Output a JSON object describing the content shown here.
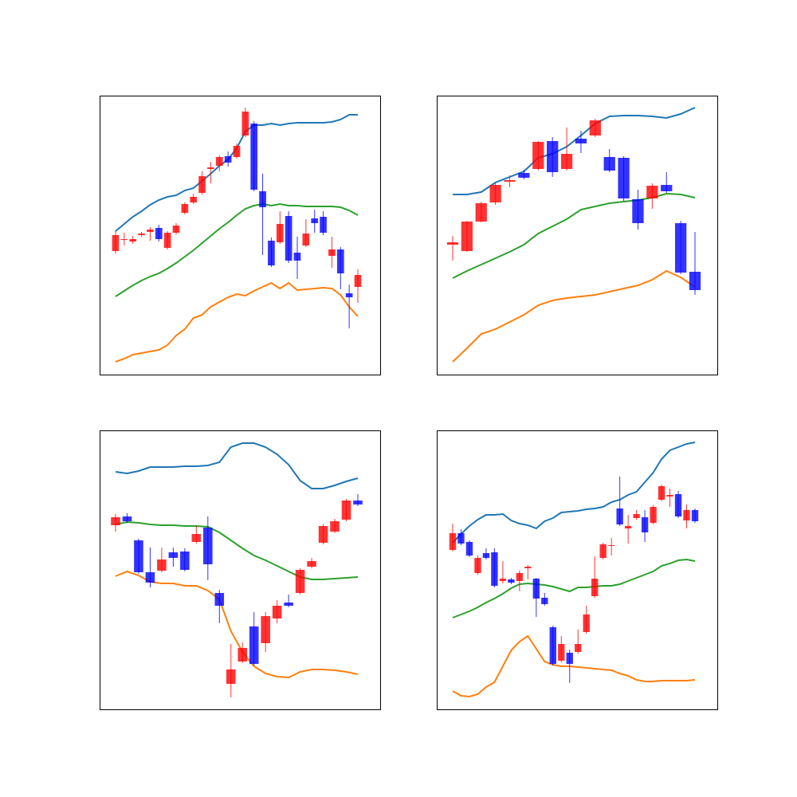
{
  "chart_data": [
    {
      "type": "candlestick",
      "ylim": [
        0,
        350
      ],
      "up_color": "#ff0000",
      "down_color": "#0000ff",
      "open": [
        155,
        169,
        167,
        175,
        179,
        184,
        159,
        178,
        203,
        216,
        228,
        258,
        262,
        274,
        273,
        300,
        315,
        230,
        168,
        166,
        199,
        153,
        162,
        196,
        198,
        149,
        157,
        102,
        110
      ],
      "high": [
        180,
        178,
        174,
        179,
        185,
        188,
        180,
        190,
        216,
        227,
        255,
        267,
        275,
        280,
        290,
        335,
        318,
        252,
        172,
        205,
        205,
        173,
        195,
        207,
        205,
        173,
        160,
        113,
        132
      ],
      "low": [
        152,
        162,
        164,
        173,
        168,
        167,
        157,
        176,
        201,
        214,
        226,
        240,
        255,
        261,
        271,
        298,
        230,
        150,
        135,
        164,
        140,
        120,
        160,
        178,
        175,
        134,
        107,
        58,
        90
      ],
      "close": [
        175,
        170,
        170,
        177,
        182,
        170,
        178,
        187,
        214,
        223,
        249,
        260,
        273,
        266,
        287,
        330,
        232,
        210,
        137,
        189,
        143,
        143,
        177,
        190,
        178,
        157,
        127,
        97,
        125
      ],
      "lines": [
        {
          "color": "#1f77b4",
          "values": [
            180,
            189,
            198,
            205,
            213,
            219,
            223,
            225,
            231,
            234,
            243,
            252,
            262,
            270,
            284,
            305,
            313,
            313,
            315,
            313,
            315,
            316,
            316,
            316,
            316,
            317,
            320,
            326,
            326
          ]
        },
        {
          "color": "#2ca02c",
          "values": [
            98,
            105,
            112,
            118,
            123,
            127,
            133,
            140,
            148,
            156,
            165,
            174,
            183,
            191,
            200,
            208,
            212,
            214,
            212,
            214,
            212,
            212,
            211,
            211,
            211,
            211,
            210,
            206,
            200
          ]
        },
        {
          "color": "#ff7f0e",
          "values": [
            16,
            20,
            25,
            27,
            29,
            31,
            37,
            49,
            57,
            71,
            75,
            85,
            91,
            97,
            101,
            99,
            105,
            110,
            115,
            108,
            115,
            106,
            107,
            108,
            109,
            108,
            100,
            85,
            73
          ]
        }
      ]
    },
    {
      "type": "candlestick",
      "ylim": [
        0,
        350
      ],
      "up_color": "#ff0000",
      "down_color": "#0000ff",
      "open": [
        163,
        155,
        192,
        216,
        242,
        253,
        258,
        293,
        258,
        296,
        300,
        273,
        272,
        220,
        221,
        238,
        190,
        129
      ],
      "high": [
        174,
        193,
        217,
        241,
        250,
        257,
        293,
        298,
        310,
        306,
        321,
        283,
        274,
        232,
        240,
        254,
        193,
        179
      ],
      "low": [
        143,
        154,
        191,
        213,
        235,
        245,
        256,
        248,
        256,
        278,
        298,
        254,
        218,
        182,
        208,
        228,
        126,
        100
      ],
      "close": [
        166,
        192,
        215,
        238,
        244,
        247,
        292,
        254,
        277,
        290,
        319,
        256,
        221,
        190,
        237,
        230,
        128,
        106
      ],
      "lines": [
        {
          "color": "#1f77b4",
          "values": [
            226,
            226,
            229,
            241,
            248,
            255,
            272,
            277,
            286,
            300,
            315,
            324,
            325,
            325,
            324,
            322,
            327,
            335
          ]
        },
        {
          "color": "#2ca02c",
          "values": [
            121,
            130,
            138,
            146,
            154,
            163,
            177,
            186,
            195,
            207,
            211,
            215,
            217,
            219,
            222,
            227,
            226,
            222
          ]
        },
        {
          "color": "#ff7f0e",
          "values": [
            16,
            33,
            51,
            57,
            66,
            75,
            87,
            93,
            96,
            98,
            100,
            104,
            108,
            112,
            119,
            130,
            122,
            110
          ]
        }
      ]
    },
    {
      "type": "candlestick",
      "ylim": [
        0,
        350
      ],
      "up_color": "#ff0000",
      "down_color": "#0000ff",
      "open": [
        231,
        242,
        212,
        172,
        174,
        197,
        198,
        210,
        228,
        146,
        32,
        60,
        104,
        83,
        114,
        134,
        146,
        179,
        209,
        223,
        238,
        262
      ],
      "high": [
        245,
        246,
        214,
        203,
        203,
        203,
        202,
        230,
        242,
        150,
        82,
        84,
        122,
        122,
        137,
        144,
        177,
        190,
        232,
        239,
        264,
        270
      ],
      "low": [
        223,
        234,
        170,
        153,
        172,
        179,
        173,
        208,
        162,
        108,
        15,
        58,
        55,
        72,
        108,
        128,
        144,
        177,
        207,
        221,
        236,
        255
      ],
      "close": [
        241,
        236,
        172,
        159,
        188,
        190,
        175,
        220,
        182,
        130,
        50,
        77,
        57,
        117,
        130,
        130,
        175,
        186,
        230,
        236,
        262,
        257
      ],
      "lines": [
        {
          "color": "#1f77b4",
          "values": [
            298,
            296,
            299,
            304,
            304,
            304,
            305,
            305,
            306,
            310,
            329,
            334,
            334,
            329,
            320,
            307,
            287,
            277,
            277,
            281,
            286,
            290
          ]
        },
        {
          "color": "#2ca02c",
          "values": [
            232,
            235,
            234,
            232,
            231,
            231,
            230,
            230,
            229,
            222,
            212,
            202,
            193,
            187,
            180,
            173,
            166,
            163,
            163,
            164,
            165,
            166
          ]
        },
        {
          "color": "#ff7f0e",
          "values": [
            167,
            173,
            168,
            160,
            158,
            158,
            155,
            155,
            149,
            138,
            98,
            72,
            54,
            45,
            41,
            40,
            47,
            50,
            50,
            49,
            47,
            44
          ]
        }
      ]
    },
    {
      "type": "candlestick",
      "ylim": [
        0,
        350
      ],
      "up_color": "#ff0000",
      "down_color": "#0000ff",
      "open": [
        200,
        221,
        210,
        171,
        196,
        197,
        161,
        163,
        161,
        177,
        164,
        140,
        103,
        61,
        71,
        72,
        97,
        142,
        190,
        205,
        252,
        227,
        240,
        241,
        234,
        263,
        267,
        270,
        237,
        250
      ],
      "high": [
        233,
        226,
        212,
        193,
        202,
        202,
        186,
        165,
        174,
        181,
        165,
        146,
        105,
        92,
        75,
        100,
        130,
        192,
        209,
        215,
        292,
        244,
        250,
        250,
        256,
        282,
        277,
        274,
        257,
        252
      ],
      "low": [
        198,
        206,
        191,
        169,
        188,
        153,
        158,
        157,
        148,
        163,
        116,
        130,
        55,
        59,
        33,
        70,
        95,
        140,
        188,
        193,
        230,
        208,
        238,
        210,
        232,
        261,
        254,
        240,
        227,
        234
      ],
      "close": [
        221,
        208,
        193,
        190,
        190,
        155,
        164,
        159,
        171,
        179,
        139,
        132,
        57,
        82,
        57,
        82,
        119,
        164,
        207,
        206,
        232,
        230,
        245,
        222,
        254,
        280,
        269,
        242,
        250,
        236
      ],
      "lines": [
        {
          "color": "#1f77b4",
          "values": [
            209,
            220,
            230,
            238,
            244,
            244,
            245,
            237,
            233,
            231,
            227,
            236,
            240,
            247,
            248,
            249,
            251,
            252,
            254,
            260,
            263,
            269,
            273,
            285,
            297,
            314,
            325,
            329,
            333,
            335
          ]
        },
        {
          "color": "#2ca02c",
          "values": [
            115,
            119,
            123,
            128,
            134,
            139,
            145,
            152,
            157,
            158,
            157,
            156,
            154,
            151,
            148,
            153,
            153,
            154,
            155,
            155,
            157,
            161,
            165,
            169,
            173,
            180,
            183,
            187,
            188,
            186
          ]
        },
        {
          "color": "#ff7f0e",
          "values": [
            23,
            17,
            16,
            19,
            28,
            34,
            54,
            74,
            85,
            92,
            76,
            60,
            56,
            54,
            54,
            53,
            52,
            51,
            50,
            49,
            45,
            42,
            37,
            35,
            35,
            36,
            36,
            36,
            36,
            37
          ]
        }
      ]
    }
  ]
}
